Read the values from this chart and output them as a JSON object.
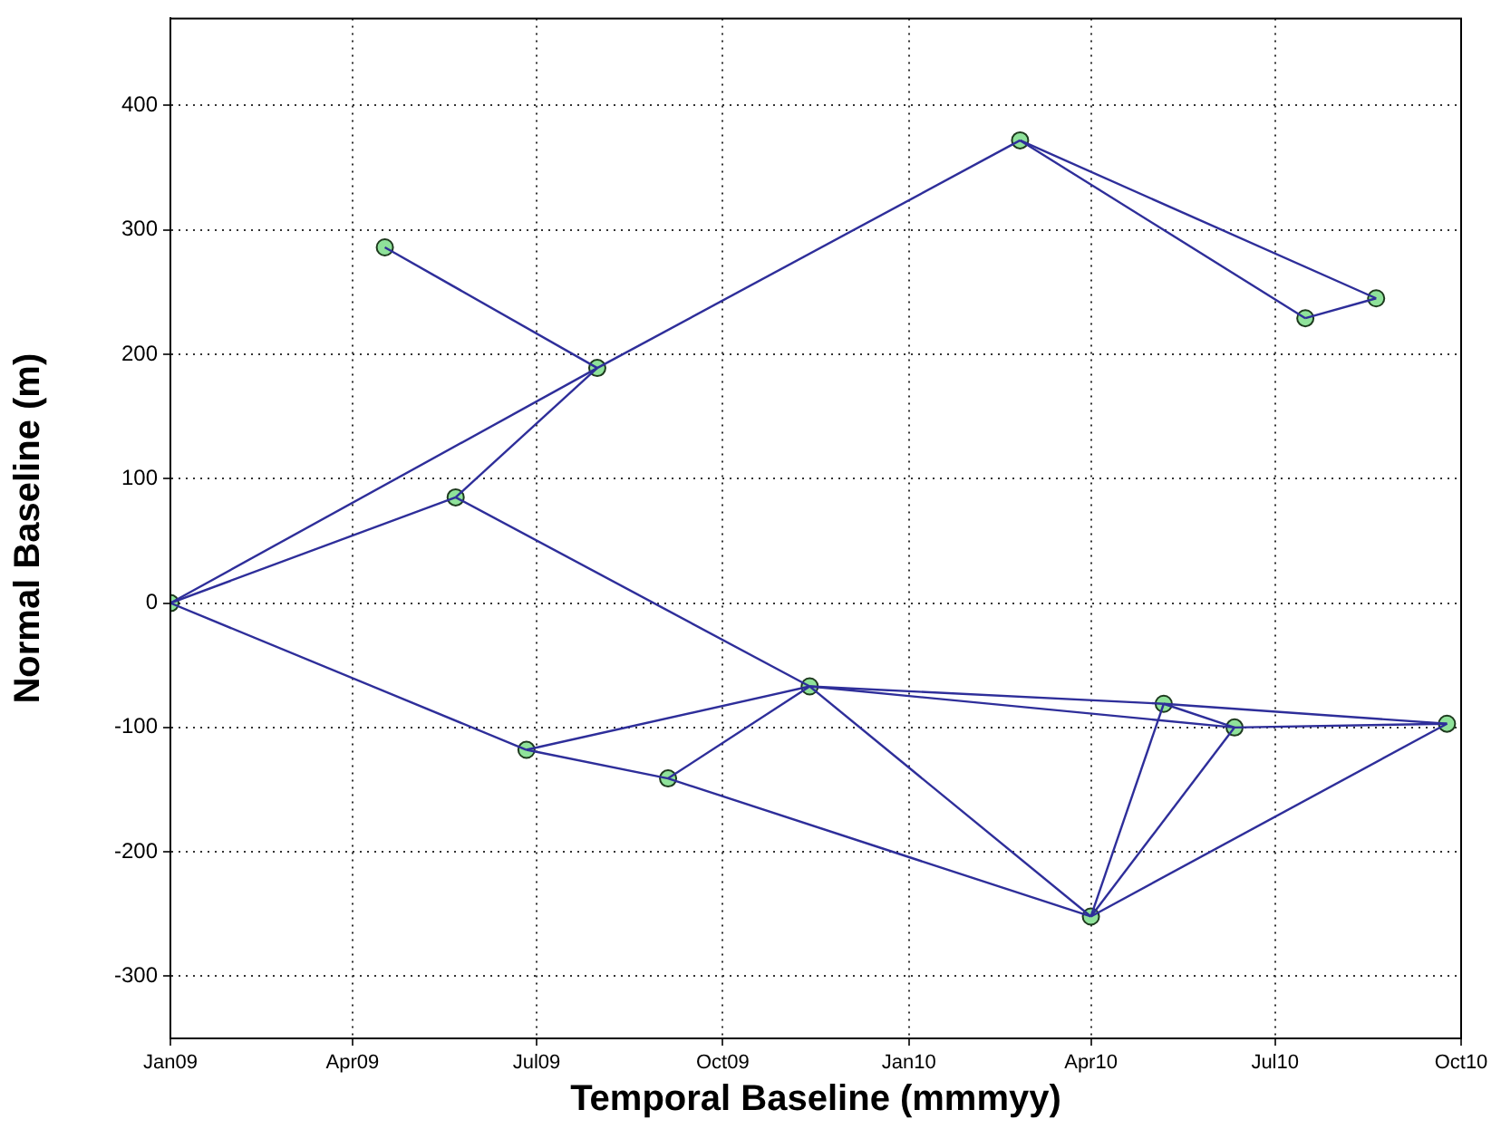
{
  "chart_data": {
    "type": "scatter",
    "xlabel": "Temporal Baseline (mmmyy)",
    "ylabel": "Normal Baseline (m)",
    "xlim": [
      "2009-01-01",
      "2010-10-01"
    ],
    "xticks": [
      {
        "value": "2009-01-01",
        "label": "Jan09"
      },
      {
        "value": "2009-04-01",
        "label": "Apr09"
      },
      {
        "value": "2009-07-01",
        "label": "Jul09"
      },
      {
        "value": "2009-10-01",
        "label": "Oct09"
      },
      {
        "value": "2010-01-01",
        "label": "Jan10"
      },
      {
        "value": "2010-04-01",
        "label": "Apr10"
      },
      {
        "value": "2010-07-01",
        "label": "Jul10"
      },
      {
        "value": "2010-10-01",
        "label": "Oct10"
      }
    ],
    "ylim": [
      -350,
      470
    ],
    "yticks": [
      -300,
      -200,
      -100,
      0,
      100,
      200,
      300,
      400
    ],
    "grid": true,
    "series": [
      {
        "type": "line",
        "color": "#2e2e9a",
        "x": [
          "2009-01-01",
          "2009-07-31"
        ],
        "values": [
          0,
          189
        ]
      },
      {
        "type": "line",
        "color": "#2e2e9a",
        "x": [
          "2009-01-01",
          "2009-05-22"
        ],
        "values": [
          0,
          85
        ]
      },
      {
        "type": "line",
        "color": "#2e2e9a",
        "x": [
          "2009-01-01",
          "2009-06-26"
        ],
        "values": [
          0,
          -118
        ]
      },
      {
        "type": "line",
        "color": "#2e2e9a",
        "x": [
          "2009-04-17",
          "2009-07-31"
        ],
        "values": [
          286,
          189
        ]
      },
      {
        "type": "line",
        "color": "#2e2e9a",
        "x": [
          "2009-05-22",
          "2009-07-31"
        ],
        "values": [
          85,
          189
        ]
      },
      {
        "type": "line",
        "color": "#2e2e9a",
        "x": [
          "2009-05-22",
          "2009-11-13"
        ],
        "values": [
          85,
          -67
        ]
      },
      {
        "type": "line",
        "color": "#2e2e9a",
        "x": [
          "2009-07-31",
          "2010-02-25"
        ],
        "values": [
          189,
          372
        ]
      },
      {
        "type": "line",
        "color": "#2e2e9a",
        "x": [
          "2010-02-25",
          "2010-07-16"
        ],
        "values": [
          372,
          229
        ]
      },
      {
        "type": "line",
        "color": "#2e2e9a",
        "x": [
          "2010-02-25",
          "2010-08-20"
        ],
        "values": [
          372,
          245
        ]
      },
      {
        "type": "line",
        "color": "#2e2e9a",
        "x": [
          "2010-07-16",
          "2010-08-20"
        ],
        "values": [
          229,
          245
        ]
      },
      {
        "type": "line",
        "color": "#2e2e9a",
        "x": [
          "2009-06-26",
          "2009-11-13"
        ],
        "values": [
          -118,
          -67
        ]
      },
      {
        "type": "line",
        "color": "#2e2e9a",
        "x": [
          "2009-06-26",
          "2009-09-04"
        ],
        "values": [
          -118,
          -141
        ]
      },
      {
        "type": "line",
        "color": "#2e2e9a",
        "x": [
          "2009-09-04",
          "2009-11-13"
        ],
        "values": [
          -141,
          -67
        ]
      },
      {
        "type": "line",
        "color": "#2e2e9a",
        "x": [
          "2009-09-04",
          "2010-04-01"
        ],
        "values": [
          -141,
          -252
        ]
      },
      {
        "type": "line",
        "color": "#2e2e9a",
        "x": [
          "2009-11-13",
          "2010-04-01"
        ],
        "values": [
          -67,
          -252
        ]
      },
      {
        "type": "line",
        "color": "#2e2e9a",
        "x": [
          "2009-11-13",
          "2010-05-07"
        ],
        "values": [
          -67,
          -81
        ]
      },
      {
        "type": "line",
        "color": "#2e2e9a",
        "x": [
          "2009-11-13",
          "2010-06-11"
        ],
        "values": [
          -67,
          -100
        ]
      },
      {
        "type": "line",
        "color": "#2e2e9a",
        "x": [
          "2010-05-07",
          "2010-06-11"
        ],
        "values": [
          -81,
          -100
        ]
      },
      {
        "type": "line",
        "color": "#2e2e9a",
        "x": [
          "2010-05-07",
          "2010-09-24"
        ],
        "values": [
          -81,
          -97
        ]
      },
      {
        "type": "line",
        "color": "#2e2e9a",
        "x": [
          "2010-06-11",
          "2010-09-24"
        ],
        "values": [
          -100,
          -97
        ]
      },
      {
        "type": "line",
        "color": "#2e2e9a",
        "x": [
          "2010-04-01",
          "2010-05-07"
        ],
        "values": [
          -252,
          -81
        ]
      },
      {
        "type": "line",
        "color": "#2e2e9a",
        "x": [
          "2010-04-01",
          "2010-06-11"
        ],
        "values": [
          -252,
          -100
        ]
      },
      {
        "type": "line",
        "color": "#2e2e9a",
        "x": [
          "2010-04-01",
          "2010-09-24"
        ],
        "values": [
          -252,
          -97
        ]
      },
      {
        "type": "scatter",
        "color": "#8fe29a",
        "marker": "circle",
        "x": [
          "2009-01-01",
          "2009-04-17",
          "2009-05-22",
          "2009-07-31",
          "2009-06-26",
          "2009-09-04",
          "2009-11-13",
          "2010-02-25",
          "2010-07-16",
          "2010-08-20",
          "2010-04-01",
          "2010-05-07",
          "2010-06-11",
          "2010-09-24"
        ],
        "values": [
          0,
          286,
          85,
          189,
          -118,
          -141,
          -67,
          372,
          229,
          245,
          -252,
          -81,
          -100,
          -97
        ]
      }
    ]
  }
}
